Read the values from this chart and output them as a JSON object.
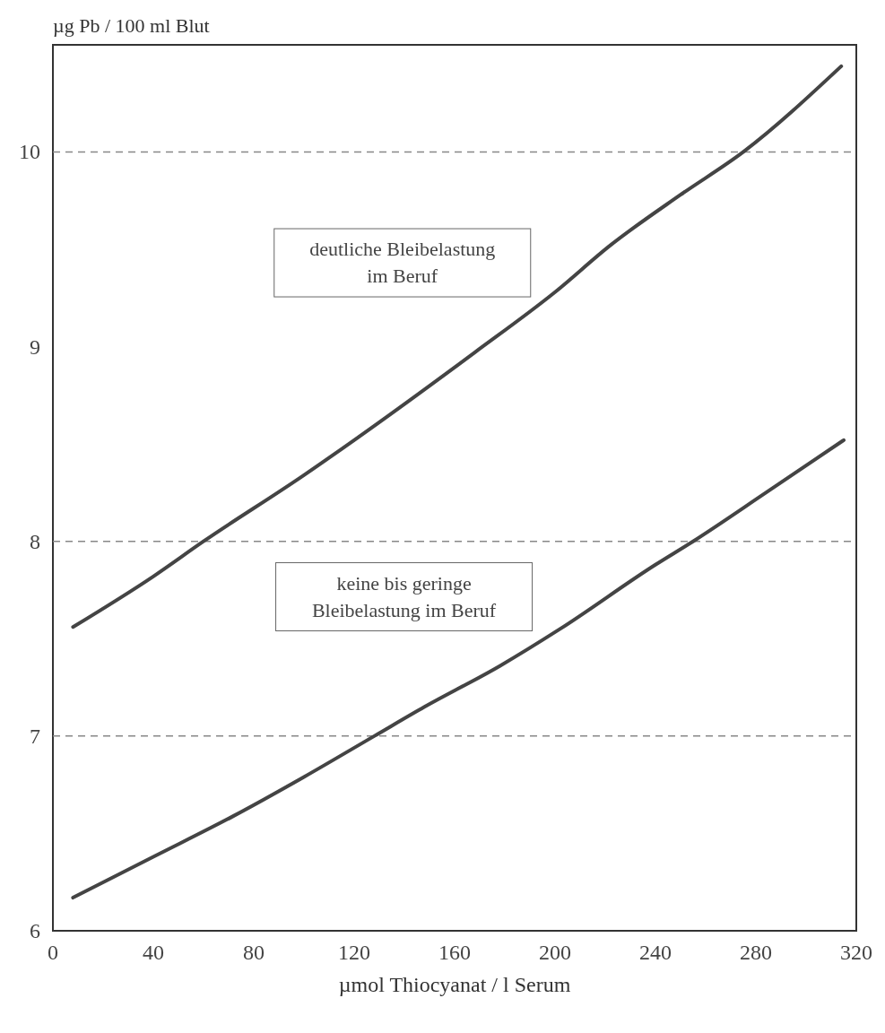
{
  "chart_data": {
    "type": "line",
    "ylabel": "µg Pb / 100 ml Blut",
    "xlabel": "µmol Thiocyanat / l Serum",
    "xlim": [
      0,
      320
    ],
    "xticks": [
      0,
      40,
      80,
      120,
      160,
      200,
      240,
      280,
      320
    ],
    "ylim": [
      6,
      10.55
    ],
    "yticks": [
      6,
      7,
      8,
      9,
      10
    ],
    "legend": false,
    "grid": false,
    "marker": "none",
    "line_style": "solid",
    "ref_lines": [
      {
        "axis": "y",
        "value": 10,
        "color": "#888888",
        "line_style": "dashed"
      },
      {
        "axis": "y",
        "value": 8,
        "color": "#888888",
        "line_style": "dashed"
      },
      {
        "axis": "y",
        "value": 7,
        "color": "#888888",
        "line_style": "dashed"
      }
    ],
    "series": [
      {
        "name": "deutliche Bleibelastung im Beruf",
        "color": "#444444",
        "x": [
          8,
          40,
          60,
          100,
          120,
          168,
          200,
          222,
          250,
          275,
          314
        ],
        "values": [
          7.56,
          7.82,
          8.0,
          8.34,
          8.52,
          8.97,
          9.28,
          9.52,
          9.78,
          10.0,
          10.44
        ]
      },
      {
        "name": "keine bis geringe Bleibelastung im Beruf",
        "color": "#444444",
        "x": [
          8,
          40,
          72,
          100,
          128,
          148,
          178,
          202,
          240,
          255,
          284,
          315
        ],
        "values": [
          6.17,
          6.38,
          6.59,
          6.79,
          7.0,
          7.15,
          7.36,
          7.55,
          7.88,
          8.0,
          8.25,
          8.52
        ]
      }
    ]
  }
}
